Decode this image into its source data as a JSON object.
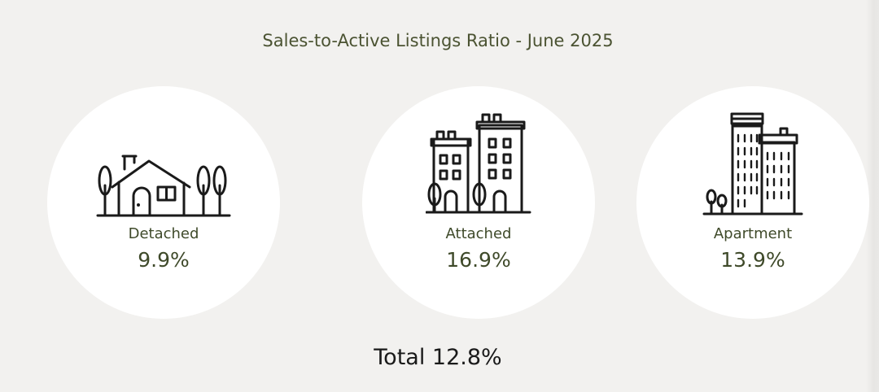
{
  "title": "Sales-to-Active Listings Ratio - June 2025",
  "categories": [
    {
      "label": "Detached",
      "value": "9.9%",
      "icon": "house-icon"
    },
    {
      "label": "Attached",
      "value": "16.9%",
      "icon": "townhouse-icon"
    },
    {
      "label": "Apartment",
      "value": "13.9%",
      "icon": "apartment-building-icon"
    }
  ],
  "total": "Total 12.8%",
  "colors": {
    "background": "#f2f1ef",
    "card": "#ffffff",
    "accent_text": "#3f4a2a",
    "title_text": "#4b5332",
    "icon_stroke": "#1a1a1a"
  }
}
